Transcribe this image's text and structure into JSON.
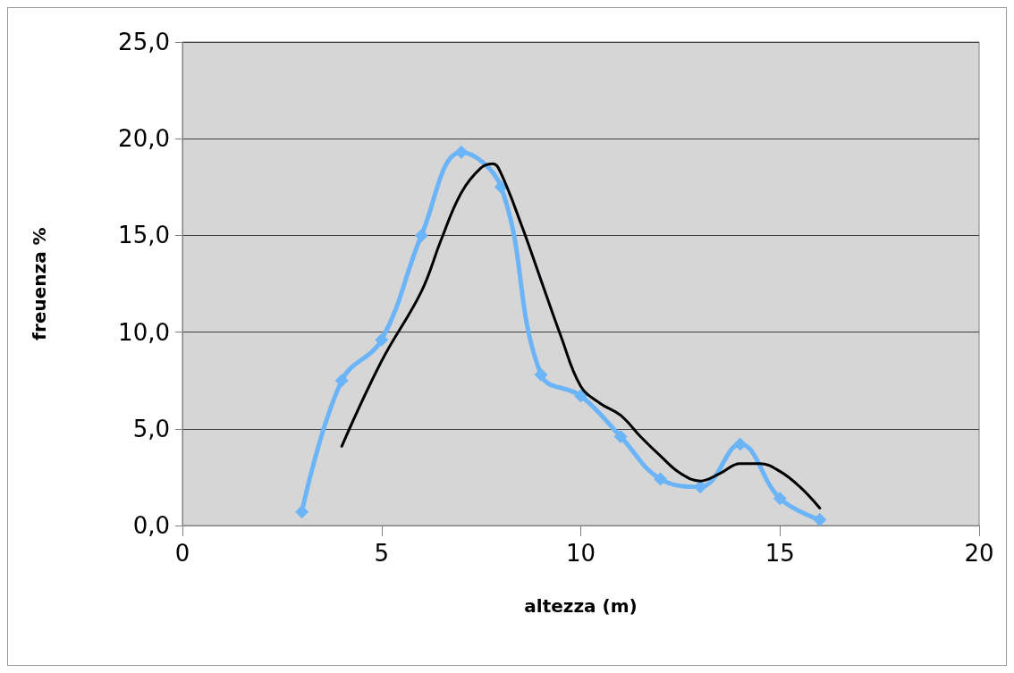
{
  "chart_data": {
    "type": "line",
    "xlabel": "altezza (m)",
    "ylabel": "freuenza %",
    "xlim": [
      0,
      20
    ],
    "xticks": [
      0,
      5,
      10,
      15,
      20
    ],
    "ylim": [
      0,
      25
    ],
    "yticks": [
      {
        "value": 0,
        "label": "0,0"
      },
      {
        "value": 5,
        "label": "5,0"
      },
      {
        "value": 10,
        "label": "10,0"
      },
      {
        "value": 15,
        "label": "15,0"
      },
      {
        "value": 20,
        "label": "20,0"
      },
      {
        "value": 25,
        "label": "25,0"
      }
    ],
    "grid": "y",
    "series": [
      {
        "color": "#6cb4f8",
        "marker": "diamond",
        "line_style": "solid",
        "x": [
          3,
          4,
          5,
          6,
          7,
          8,
          9,
          10,
          11,
          12,
          13,
          14,
          15,
          16
        ],
        "values": [
          0.7,
          7.5,
          9.6,
          15.0,
          19.3,
          17.5,
          7.8,
          6.7,
          4.6,
          2.4,
          2.0,
          4.2,
          1.4,
          0.3
        ]
      },
      {
        "color": "#000000",
        "marker": "none",
        "line_style": "solid",
        "x": [
          4,
          5,
          6,
          6.5,
          7,
          7.5,
          7.8,
          8,
          8.5,
          9,
          9.5,
          10,
          10.5,
          11,
          11.5,
          12,
          12.5,
          13,
          13.5,
          14,
          14.5,
          15,
          15.5,
          16
        ],
        "values": [
          4.1,
          8.5,
          12.1,
          14.8,
          17.2,
          18.5,
          18.7,
          18.2,
          15.6,
          12.7,
          9.8,
          7.2,
          6.3,
          5.7,
          4.6,
          3.6,
          2.7,
          2.3,
          2.7,
          3.2,
          3.2,
          2.8,
          2.0,
          0.9
        ]
      }
    ]
  }
}
